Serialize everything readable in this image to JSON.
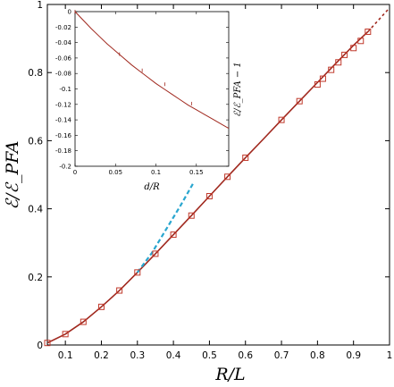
{
  "chart_data": [
    {
      "type": "line",
      "xlabel": "R/L",
      "ylabel": "ℰ/ℰ_PFA",
      "xlim": [
        0.05,
        1.0
      ],
      "ylim": [
        0.0,
        1.0
      ],
      "x_ticks": [
        "0.1",
        "0.2",
        "0.3",
        "0.4",
        "0.5",
        "0.6",
        "0.7",
        "0.8",
        "0.9",
        "1"
      ],
      "y_ticks": [
        "0",
        "0.2",
        "0.4",
        "0.6",
        "0.8",
        "1"
      ],
      "series": [
        {
          "style": "solid",
          "color": "#a0281e",
          "x": [
            0.05,
            0.1,
            0.15,
            0.2,
            0.25,
            0.3,
            0.35,
            0.4,
            0.45,
            0.5,
            0.55,
            0.6,
            0.65,
            0.7,
            0.75,
            0.8,
            0.85,
            0.9,
            0.94
          ],
          "y": [
            0.006,
            0.032,
            0.068,
            0.112,
            0.16,
            0.213,
            0.268,
            0.324,
            0.38,
            0.437,
            0.494,
            0.55,
            0.605,
            0.661,
            0.716,
            0.771,
            0.826,
            0.88,
            0.92
          ]
        },
        {
          "style": "dashed",
          "color": "#a0281e",
          "x": [
            0.94,
            0.97,
            1.0
          ],
          "y": [
            0.92,
            0.955,
            0.99
          ]
        },
        {
          "style": "dashed",
          "color": "#29a6cf",
          "x": [
            0.3,
            0.34,
            0.38,
            0.42,
            0.455
          ],
          "y": [
            0.213,
            0.27,
            0.34,
            0.41,
            0.475
          ]
        },
        {
          "style": "markers",
          "marker": "square",
          "color": "#c0392b",
          "x": [
            0.05,
            0.1,
            0.15,
            0.2,
            0.25,
            0.3,
            0.35,
            0.4,
            0.45,
            0.5,
            0.55,
            0.6,
            0.7,
            0.75,
            0.8,
            0.815,
            0.838,
            0.858,
            0.875,
            0.9,
            0.92,
            0.94
          ],
          "y": [
            0.006,
            0.032,
            0.068,
            0.112,
            0.16,
            0.213,
            0.268,
            0.324,
            0.38,
            0.437,
            0.494,
            0.55,
            0.661,
            0.716,
            0.765,
            0.782,
            0.808,
            0.83,
            0.852,
            0.872,
            0.893,
            0.92
          ]
        }
      ]
    },
    {
      "type": "line",
      "xlabel": "d/R",
      "ylabel": "ℰ/ℰ_PFA − 1",
      "xlim": [
        0.0,
        0.19
      ],
      "ylim": [
        -0.2,
        0.0
      ],
      "x_ticks": [
        "0",
        "0.05",
        "0.1",
        "0.15"
      ],
      "y_ticks": [
        "0",
        "-0.02",
        "-0.04",
        "-0.06",
        "-0.08",
        "-0.1",
        "-0.12",
        "-0.14",
        "-0.16",
        "-0.18",
        "-0.2"
      ],
      "series": [
        {
          "style": "solid",
          "color": "#a0281e",
          "x": [
            0.0,
            0.01,
            0.02,
            0.03,
            0.04,
            0.05,
            0.06,
            0.07,
            0.08,
            0.09,
            0.1,
            0.11,
            0.12,
            0.13,
            0.14,
            0.15,
            0.16,
            0.17,
            0.18,
            0.19
          ],
          "y": [
            0.0,
            -0.011,
            -0.022,
            -0.032,
            -0.042,
            -0.051,
            -0.06,
            -0.069,
            -0.077,
            -0.085,
            -0.093,
            -0.1,
            -0.107,
            -0.114,
            -0.121,
            -0.127,
            -0.133,
            -0.139,
            -0.145,
            -0.151
          ]
        },
        {
          "style": "markers",
          "marker": "tick",
          "color": "#a0281e",
          "x": [
            0.0,
            0.055,
            0.083,
            0.111,
            0.144
          ],
          "y": [
            0.0,
            -0.055,
            -0.076,
            -0.094,
            -0.119
          ]
        }
      ]
    }
  ]
}
